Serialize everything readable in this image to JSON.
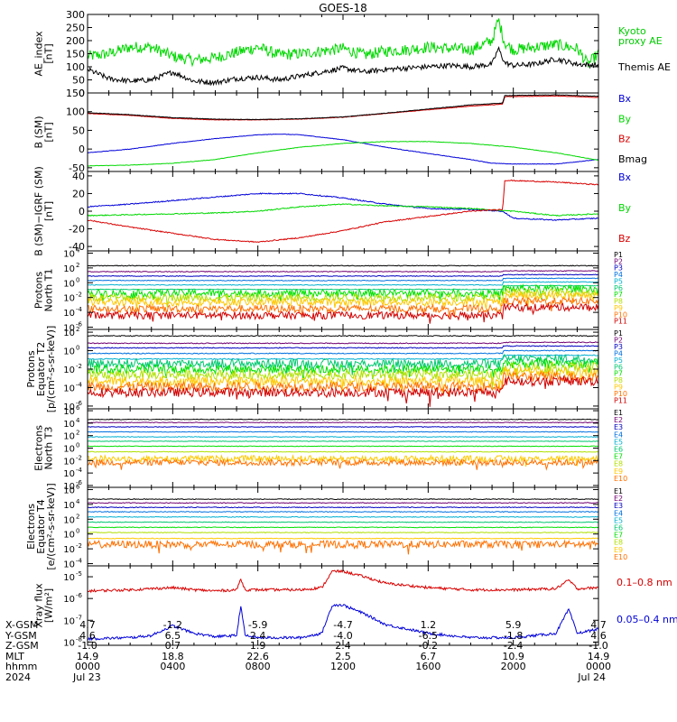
{
  "title": "GOES-18",
  "colors": {
    "black": "#000000",
    "green": "#00d800",
    "red": "#d80000",
    "blue": "#0000d8",
    "legend_green": "#00cc00",
    "palette11": [
      "#000000",
      "#700070",
      "#0000c0",
      "#0070e0",
      "#00b0d0",
      "#00c870",
      "#00e000",
      "#b0e000",
      "#ffc800",
      "#ff7000",
      "#d00000"
    ]
  },
  "chart_data": [
    {
      "id": "ae",
      "type": "line",
      "ylabel": "AE_index\n[nT]",
      "ylim": [
        0,
        300
      ],
      "yticks": [
        "0",
        "50",
        "100",
        "150",
        "200",
        "250",
        "300"
      ],
      "legend": [
        {
          "name": "Kyoto\nproxy AE",
          "color": "#00cc00"
        },
        {
          "name": "Themis AE",
          "color": "#000000"
        }
      ],
      "series": [
        {
          "name": "Kyoto proxy AE",
          "color": "#00d800",
          "x": [
            0,
            1,
            2,
            3,
            4,
            5,
            6,
            7,
            8,
            9,
            10,
            11,
            12,
            13,
            14,
            15,
            16,
            17,
            18,
            19,
            19.3,
            19.6,
            20,
            21,
            22,
            23,
            23.5,
            24
          ],
          "y": [
            140,
            150,
            175,
            175,
            140,
            125,
            135,
            155,
            175,
            145,
            150,
            160,
            170,
            145,
            160,
            165,
            175,
            170,
            165,
            200,
            280,
            190,
            165,
            175,
            185,
            170,
            110,
            150
          ]
        },
        {
          "name": "Themis AE",
          "color": "#000000",
          "x": [
            0,
            1,
            2,
            3,
            4,
            5,
            6,
            7,
            8,
            9,
            10,
            11,
            12,
            13,
            14,
            15,
            16,
            17,
            18,
            19,
            19.3,
            19.6,
            20,
            21,
            22,
            23,
            24
          ],
          "y": [
            90,
            55,
            45,
            50,
            80,
            45,
            40,
            55,
            60,
            50,
            65,
            80,
            95,
            80,
            90,
            95,
            100,
            105,
            100,
            110,
            170,
            115,
            105,
            110,
            130,
            110,
            105
          ]
        }
      ]
    },
    {
      "id": "bsm",
      "type": "line",
      "ylabel": "B (SM)\n[nT]",
      "ylim": [
        -60,
        150
      ],
      "yticks": [
        "-50",
        "0",
        "50",
        "100",
        "150"
      ],
      "legend": [
        {
          "name": "Bx",
          "color": "#0000d8"
        },
        {
          "name": "By",
          "color": "#00d800"
        },
        {
          "name": "Bz",
          "color": "#d80000"
        },
        {
          "name": "Bmag",
          "color": "#000000"
        }
      ],
      "series": [
        {
          "name": "Bx",
          "color": "#0000d8",
          "x": [
            0,
            2,
            4,
            6,
            8,
            9,
            10,
            12,
            14,
            16,
            18,
            19,
            20,
            22,
            24
          ],
          "y": [
            -10,
            0,
            15,
            28,
            38,
            40,
            38,
            25,
            5,
            -12,
            -28,
            -38,
            -40,
            -40,
            -28
          ]
        },
        {
          "name": "By",
          "color": "#00d800",
          "x": [
            0,
            2,
            4,
            6,
            8,
            10,
            12,
            14,
            16,
            18,
            20,
            22,
            24
          ],
          "y": [
            -45,
            -43,
            -38,
            -28,
            -10,
            5,
            15,
            20,
            20,
            15,
            5,
            -10,
            -30
          ]
        },
        {
          "name": "Bz",
          "color": "#d80000",
          "x": [
            0,
            2,
            4,
            6,
            8,
            10,
            12,
            14,
            16,
            18,
            19.5,
            19.6,
            22,
            24
          ],
          "y": [
            95,
            90,
            82,
            78,
            78,
            80,
            85,
            95,
            105,
            115,
            120,
            140,
            142,
            138
          ]
        },
        {
          "name": "Bmag",
          "color": "#000000",
          "x": [
            0,
            2,
            4,
            6,
            8,
            10,
            12,
            14,
            16,
            18,
            19.5,
            19.6,
            22,
            24
          ],
          "y": [
            97,
            92,
            84,
            80,
            79,
            81,
            86,
            96,
            107,
            118,
            123,
            143,
            145,
            141
          ]
        }
      ]
    },
    {
      "id": "bdelta",
      "type": "line",
      "ylabel": "B (SM)−IGRF (SM)\n[nT]",
      "ylim": [
        -45,
        45
      ],
      "yticks": [
        "-40",
        "-20",
        "0",
        "20",
        "40"
      ],
      "legend": [
        {
          "name": "Bx",
          "color": "#0000d8"
        },
        {
          "name": "By",
          "color": "#00d800"
        },
        {
          "name": "Bz",
          "color": "#d80000"
        }
      ],
      "series": [
        {
          "name": "Bx",
          "color": "#0000d8",
          "x": [
            0,
            2,
            4,
            6,
            8,
            10,
            12,
            14,
            16,
            18,
            19.5,
            20,
            22,
            24
          ],
          "y": [
            5,
            8,
            12,
            16,
            20,
            20,
            15,
            8,
            3,
            2,
            0,
            -8,
            -10,
            -8
          ]
        },
        {
          "name": "By",
          "color": "#00d800",
          "x": [
            0,
            2,
            4,
            6,
            8,
            10,
            12,
            14,
            16,
            18,
            20,
            22,
            24
          ],
          "y": [
            -5,
            -4,
            -3,
            -2,
            0,
            5,
            8,
            6,
            5,
            3,
            0,
            -5,
            -3
          ]
        },
        {
          "name": "Bz",
          "color": "#d80000",
          "x": [
            0,
            2,
            4,
            6,
            8,
            10,
            12,
            14,
            16,
            18,
            19.5,
            19.6,
            22,
            24
          ],
          "y": [
            -10,
            -18,
            -25,
            -32,
            -35,
            -30,
            -22,
            -12,
            -6,
            0,
            2,
            35,
            33,
            30
          ]
        }
      ]
    },
    {
      "id": "p_north",
      "type": "line",
      "ylabel": "Protons\nNorth T1",
      "yscale": "log",
      "ylim_exp": [
        -6.3,
        4.3
      ],
      "ytick_exps": [
        -6,
        -4,
        -2,
        0,
        2,
        4
      ],
      "legend": [
        "P1",
        "P2",
        "P3",
        "P4",
        "P5",
        "P6",
        "P7",
        "P8",
        "P9",
        "P10",
        "P11"
      ],
      "levels_log10": [
        2.3,
        1.5,
        0.9,
        0.3,
        -0.3,
        -0.9,
        -1.4,
        -2.0,
        -2.6,
        -3.5,
        -4.4
      ],
      "step_hour": 19.5,
      "step_rise_log10": [
        0,
        0.1,
        0.2,
        0.3,
        0.4,
        0.5,
        0.6,
        0.7,
        0.9,
        1.0,
        1.1
      ]
    },
    {
      "id": "p_equator",
      "type": "line",
      "ylabel": "Protons\nEquator T2\n[p/(cm²-s-sr-keV)]",
      "yscale": "log",
      "ylim_exp": [
        -6.3,
        2.3
      ],
      "ytick_exps": [
        -6,
        -4,
        -2,
        0,
        2
      ],
      "legend": [
        "P1",
        "P2",
        "P3",
        "P4",
        "P5",
        "P6",
        "P7",
        "P8",
        "P9",
        "P10",
        "P11"
      ],
      "levels_log10": [
        1.6,
        0.8,
        0.3,
        -0.3,
        -0.9,
        -1.4,
        -2.0,
        -2.6,
        -3.3,
        -3.9,
        -4.5
      ],
      "step_hour": 19.5,
      "step_rise_log10": [
        0,
        0.1,
        0.2,
        0.3,
        0.4,
        0.5,
        0.6,
        0.8,
        1.0,
        1.1,
        1.2
      ]
    },
    {
      "id": "e_north",
      "type": "line",
      "ylabel": "Electrons\nNorth T3",
      "yscale": "log",
      "ylim_exp": [
        -6.3,
        6.3
      ],
      "ytick_exps": [
        -6,
        -4,
        -2,
        0,
        2,
        4,
        6
      ],
      "legend": [
        "E1",
        "E2",
        "E3",
        "E4",
        "E5",
        "E6",
        "E7",
        "E8",
        "E9",
        "E10"
      ],
      "levels_log10": [
        4.6,
        4.1,
        3.4,
        2.6,
        1.8,
        1.1,
        0.3,
        -0.6,
        -1.7,
        -2.3
      ]
    },
    {
      "id": "e_equator",
      "type": "line",
      "ylabel": "Electrons\nEquator T4\n[e/(cm²-s-sr-keV)]",
      "yscale": "log",
      "ylim_exp": [
        -4.3,
        6.3
      ],
      "ytick_exps": [
        -4,
        -2,
        0,
        2,
        4,
        6
      ],
      "legend": [
        "E1",
        "E2",
        "E3",
        "E4",
        "E5",
        "E6",
        "E7",
        "E8",
        "E9",
        "E10"
      ],
      "levels_log10": [
        4.7,
        4.2,
        3.6,
        3.0,
        2.3,
        1.6,
        0.9,
        0.2,
        -0.6,
        -1.4
      ]
    },
    {
      "id": "xray",
      "type": "line",
      "ylabel": "Xray flux\n[W/m²]",
      "yscale": "log",
      "ylim_exp": [
        -8.15,
        -4.5
      ],
      "ytick_exps": [
        -8,
        -7,
        -6,
        -5
      ],
      "legend": [
        {
          "name": "0.1–0.8 nm",
          "color": "#d80000"
        },
        {
          "name": "0.05–0.4 nm",
          "color": "#0000d8"
        }
      ],
      "series": [
        {
          "name": "0.1-0.8 nm",
          "color": "#d80000",
          "x": [
            0,
            2,
            3,
            4,
            5,
            6,
            7,
            7.2,
            7.4,
            8,
            10,
            11,
            11.5,
            12,
            13,
            14,
            16,
            18,
            20,
            22,
            22.6,
            23,
            24
          ],
          "y": [
            -5.65,
            -5.6,
            -5.55,
            -5.5,
            -5.6,
            -5.65,
            -5.6,
            -5.1,
            -5.6,
            -5.6,
            -5.6,
            -5.5,
            -4.75,
            -4.75,
            -5.0,
            -5.3,
            -5.5,
            -5.6,
            -5.6,
            -5.55,
            -5.15,
            -5.55,
            -5.5
          ]
        },
        {
          "name": "0.05-0.4 nm",
          "color": "#0000d8",
          "x": [
            0,
            2,
            3,
            4,
            5,
            6,
            7,
            7.2,
            7.4,
            8,
            10,
            11,
            11.5,
            12,
            13,
            14,
            16,
            18,
            20,
            22,
            22.6,
            23,
            24
          ],
          "y": [
            -7.85,
            -7.8,
            -7.7,
            -7.25,
            -7.6,
            -7.75,
            -7.7,
            -6.3,
            -7.7,
            -7.8,
            -7.8,
            -7.6,
            -6.3,
            -6.3,
            -6.7,
            -7.2,
            -7.6,
            -7.8,
            -7.8,
            -7.6,
            -6.5,
            -7.6,
            -7.4
          ]
        }
      ]
    }
  ],
  "footer": {
    "row_labels": [
      "X-GSM",
      "Y-GSM",
      "Z-GSM",
      "MLT",
      "hhmm",
      "2024"
    ],
    "columns": [
      [
        "4.7",
        "4.6",
        "-1.0",
        "14.9",
        "0000",
        "Jul 23"
      ],
      [
        "-1.2",
        "6.5",
        "0.7",
        "18.8",
        "0400",
        ""
      ],
      [
        "-5.9",
        "2.4",
        "1.9",
        "22.6",
        "0800",
        ""
      ],
      [
        "-4.7",
        "-4.0",
        "2.4",
        "2.5",
        "1200",
        ""
      ],
      [
        "1.2",
        "-6.5",
        "-0.2",
        "6.7",
        "1600",
        ""
      ],
      [
        "5.9",
        "-1.8",
        "-2.4",
        "10.9",
        "2000",
        ""
      ],
      [
        "4.7",
        "4.6",
        "-1.0",
        "14.9",
        "0000",
        "Jul 24"
      ]
    ]
  }
}
